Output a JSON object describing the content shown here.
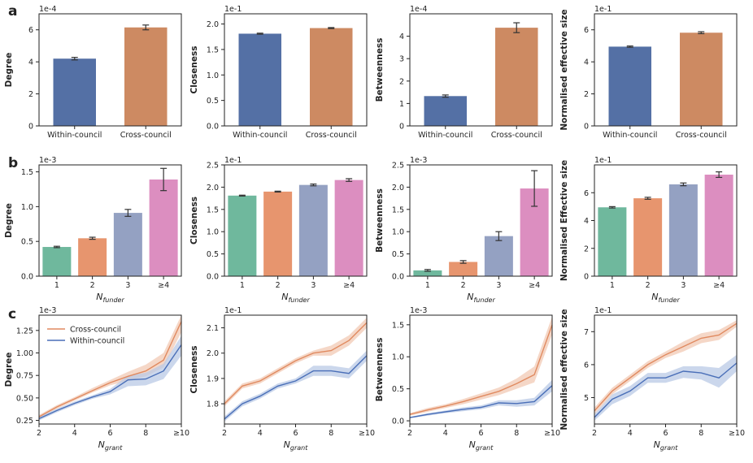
{
  "colors": {
    "within": "#5470a5",
    "cross": "#cd8a62",
    "f1": "#6fb89d",
    "f2": "#e7956e",
    "f3": "#94a1c2",
    "f4": "#dc8ec0",
    "lineCross": "#e08a60",
    "lineWithin": "#4a6fb8",
    "bandCross": "#f1c9b4",
    "bandWithin": "#b9c9e6",
    "err": "#333333"
  },
  "chart_data": [
    {
      "type": "bar",
      "panel": "a",
      "ylabel": "Degree",
      "scale": "1e-4",
      "ylim": [
        0,
        7
      ],
      "yticks": [
        0,
        2,
        4,
        6
      ],
      "categories": [
        "Within-council",
        "Cross-council"
      ],
      "values": [
        4.2,
        6.15
      ],
      "errors": [
        0.08,
        0.15
      ],
      "colorKeys": [
        "within",
        "cross"
      ]
    },
    {
      "type": "bar",
      "ylabel": "Closeness",
      "scale": "1e-1",
      "ylim": [
        0,
        2.2
      ],
      "yticks": [
        0.0,
        0.5,
        1.0,
        1.5,
        2.0
      ],
      "categories": [
        "Within-council",
        "Cross-council"
      ],
      "values": [
        1.81,
        1.92
      ],
      "errors": [
        0.01,
        0.01
      ],
      "colorKeys": [
        "within",
        "cross"
      ]
    },
    {
      "type": "bar",
      "ylabel": "Betweenness",
      "scale": "1e-4",
      "ylim": [
        0,
        5
      ],
      "yticks": [
        0,
        1,
        2,
        3,
        4
      ],
      "categories": [
        "Within-council",
        "Cross-council"
      ],
      "values": [
        1.33,
        4.38
      ],
      "errors": [
        0.05,
        0.22
      ],
      "colorKeys": [
        "within",
        "cross"
      ]
    },
    {
      "type": "bar",
      "ylabel": "Normalised effective size",
      "scale": "1e-1",
      "ylim": [
        0,
        7
      ],
      "yticks": [
        0,
        2,
        4,
        6
      ],
      "categories": [
        "Within-council",
        "Cross-council"
      ],
      "values": [
        4.95,
        5.82
      ],
      "errors": [
        0.04,
        0.06
      ],
      "colorKeys": [
        "within",
        "cross"
      ]
    },
    {
      "type": "bar",
      "panel": "b",
      "ylabel": "Degree",
      "scale": "1e-3",
      "xlabel": "N",
      "xsub": "funder",
      "ylim": [
        0,
        1.6
      ],
      "yticks": [
        0.0,
        0.5,
        1.0,
        1.5
      ],
      "categories": [
        "1",
        "2",
        "3",
        "≥4"
      ],
      "values": [
        0.42,
        0.545,
        0.91,
        1.39
      ],
      "errors": [
        0.01,
        0.015,
        0.05,
        0.16
      ],
      "colorKeys": [
        "f1",
        "f2",
        "f3",
        "f4"
      ]
    },
    {
      "type": "bar",
      "ylabel": "Closeness",
      "scale": "1e-1",
      "xlabel": "N",
      "xsub": "funder",
      "ylim": [
        0,
        2.5
      ],
      "yticks": [
        0.0,
        0.5,
        1.0,
        1.5,
        2.0,
        2.5
      ],
      "categories": [
        "1",
        "2",
        "3",
        "≥4"
      ],
      "values": [
        1.81,
        1.9,
        2.05,
        2.16
      ],
      "errors": [
        0.01,
        0.01,
        0.02,
        0.03
      ],
      "colorKeys": [
        "f1",
        "f2",
        "f3",
        "f4"
      ]
    },
    {
      "type": "bar",
      "ylabel": "Betweenness",
      "scale": "1e-3",
      "xlabel": "N",
      "xsub": "funder",
      "ylim": [
        0,
        2.5
      ],
      "yticks": [
        0.0,
        0.5,
        1.0,
        1.5,
        2.0,
        2.5
      ],
      "categories": [
        "1",
        "2",
        "3",
        "≥4"
      ],
      "values": [
        0.13,
        0.32,
        0.9,
        1.97
      ],
      "errors": [
        0.02,
        0.03,
        0.1,
        0.4
      ],
      "colorKeys": [
        "f1",
        "f2",
        "f3",
        "f4"
      ]
    },
    {
      "type": "bar",
      "ylabel": "Normalised Effective size",
      "scale": "1e-1",
      "xlabel": "N",
      "xsub": "funder",
      "ylim": [
        0,
        8
      ],
      "yticks": [
        0,
        2,
        4,
        6
      ],
      "categories": [
        "1",
        "2",
        "3",
        "≥4"
      ],
      "values": [
        4.95,
        5.6,
        6.6,
        7.3
      ],
      "errors": [
        0.05,
        0.07,
        0.1,
        0.2
      ],
      "colorKeys": [
        "f1",
        "f2",
        "f3",
        "f4"
      ]
    },
    {
      "type": "line",
      "panel": "c",
      "ylabel": "Degree",
      "scale": "1e-3",
      "xlabel": "N",
      "xsub": "grant",
      "xlim": [
        2,
        10
      ],
      "xticks": [
        2,
        4,
        6,
        8,
        10
      ],
      "xticklabels": [
        "2",
        "4",
        "6",
        "8",
        "≥10"
      ],
      "ylim": [
        0.21,
        1.42
      ],
      "yticks": [
        0.25,
        0.5,
        0.75,
        1.0,
        1.25
      ],
      "legend": [
        "Cross-council",
        "Within-council"
      ],
      "x": [
        2,
        3,
        4,
        5,
        6,
        7,
        8,
        9,
        10
      ],
      "series": [
        {
          "name": "Cross-council",
          "colorKey": "lineCross",
          "bandKey": "bandCross",
          "values": [
            0.29,
            0.4,
            0.49,
            0.58,
            0.67,
            0.74,
            0.8,
            0.92,
            1.35
          ],
          "lower": [
            0.27,
            0.38,
            0.47,
            0.56,
            0.64,
            0.69,
            0.74,
            0.84,
            1.23
          ],
          "upper": [
            0.31,
            0.42,
            0.51,
            0.61,
            0.7,
            0.79,
            0.87,
            1.0,
            1.42
          ]
        },
        {
          "name": "Within-council",
          "colorKey": "lineWithin",
          "bandKey": "bandWithin",
          "values": [
            0.27,
            0.36,
            0.44,
            0.51,
            0.57,
            0.7,
            0.71,
            0.8,
            1.09
          ],
          "lower": [
            0.25,
            0.34,
            0.42,
            0.49,
            0.54,
            0.63,
            0.64,
            0.71,
            0.97
          ],
          "upper": [
            0.29,
            0.38,
            0.46,
            0.53,
            0.6,
            0.75,
            0.78,
            0.88,
            1.19
          ]
        }
      ]
    },
    {
      "type": "line",
      "ylabel": "Closeness",
      "scale": "1e-1",
      "xlabel": "N",
      "xsub": "grant",
      "xlim": [
        2,
        10
      ],
      "xticks": [
        2,
        4,
        6,
        8,
        10
      ],
      "xticklabels": [
        "2",
        "4",
        "6",
        "8",
        "≥10"
      ],
      "ylim": [
        1.72,
        2.15
      ],
      "yticks": [
        1.8,
        1.9,
        2.0,
        2.1
      ],
      "x": [
        2,
        3,
        4,
        5,
        6,
        7,
        8,
        9,
        10
      ],
      "series": [
        {
          "name": "Cross-council",
          "colorKey": "lineCross",
          "bandKey": "bandCross",
          "values": [
            1.8,
            1.87,
            1.89,
            1.93,
            1.97,
            2.0,
            2.01,
            2.05,
            2.12
          ],
          "lower": [
            1.79,
            1.86,
            1.88,
            1.92,
            1.96,
            1.99,
            1.99,
            2.03,
            2.1
          ],
          "upper": [
            1.81,
            1.88,
            1.9,
            1.94,
            1.98,
            2.01,
            2.03,
            2.07,
            2.14
          ]
        },
        {
          "name": "Within-council",
          "colorKey": "lineWithin",
          "bandKey": "bandWithin",
          "values": [
            1.74,
            1.8,
            1.83,
            1.87,
            1.89,
            1.93,
            1.93,
            1.92,
            1.99
          ],
          "lower": [
            1.73,
            1.79,
            1.82,
            1.86,
            1.88,
            1.91,
            1.91,
            1.9,
            1.97
          ],
          "upper": [
            1.75,
            1.81,
            1.84,
            1.88,
            1.9,
            1.95,
            1.95,
            1.94,
            2.01
          ]
        }
      ]
    },
    {
      "type": "line",
      "ylabel": "Betweenness",
      "scale": "1e-3",
      "xlabel": "N",
      "xsub": "grant",
      "xlim": [
        2,
        10
      ],
      "xticks": [
        2,
        4,
        6,
        8,
        10
      ],
      "xticklabels": [
        "2",
        "4",
        "6",
        "8",
        "≥10"
      ],
      "ylim": [
        -0.05,
        1.65
      ],
      "yticks": [
        0.0,
        0.5,
        1.0,
        1.5
      ],
      "x": [
        2,
        3,
        4,
        5,
        6,
        7,
        8,
        9,
        10
      ],
      "series": [
        {
          "name": "Cross-council",
          "colorKey": "lineCross",
          "bandKey": "bandCross",
          "values": [
            0.1,
            0.17,
            0.23,
            0.3,
            0.38,
            0.46,
            0.58,
            0.72,
            1.5
          ],
          "lower": [
            0.08,
            0.14,
            0.2,
            0.26,
            0.33,
            0.4,
            0.5,
            0.6,
            1.35
          ],
          "upper": [
            0.12,
            0.2,
            0.26,
            0.34,
            0.43,
            0.52,
            0.66,
            0.85,
            1.63
          ]
        },
        {
          "name": "Within-council",
          "colorKey": "lineWithin",
          "bandKey": "bandWithin",
          "values": [
            0.05,
            0.1,
            0.14,
            0.18,
            0.21,
            0.28,
            0.27,
            0.3,
            0.55
          ],
          "lower": [
            0.04,
            0.08,
            0.12,
            0.15,
            0.18,
            0.24,
            0.22,
            0.24,
            0.46
          ],
          "upper": [
            0.06,
            0.12,
            0.16,
            0.21,
            0.24,
            0.32,
            0.32,
            0.36,
            0.64
          ]
        }
      ]
    },
    {
      "type": "line",
      "ylabel": "Normalised effective size",
      "scale": "1e-1",
      "xlabel": "N",
      "xsub": "grant",
      "xlim": [
        2,
        10
      ],
      "xticks": [
        2,
        4,
        6,
        8,
        10
      ],
      "xticklabels": [
        "2",
        "4",
        "6",
        "8",
        "≥10"
      ],
      "ylim": [
        4.2,
        7.5
      ],
      "yticks": [
        5,
        6,
        7
      ],
      "x": [
        2,
        3,
        4,
        5,
        6,
        7,
        8,
        9,
        10
      ],
      "series": [
        {
          "name": "Cross-council",
          "colorKey": "lineCross",
          "bandKey": "bandCross",
          "values": [
            4.6,
            5.2,
            5.6,
            6.0,
            6.3,
            6.55,
            6.8,
            6.9,
            7.25
          ],
          "lower": [
            4.5,
            5.1,
            5.5,
            5.9,
            6.2,
            6.4,
            6.65,
            6.75,
            7.15
          ],
          "upper": [
            4.7,
            5.3,
            5.7,
            6.1,
            6.4,
            6.7,
            6.95,
            7.05,
            7.35
          ]
        },
        {
          "name": "Within-council",
          "colorKey": "lineWithin",
          "bandKey": "bandWithin",
          "values": [
            4.4,
            4.95,
            5.2,
            5.6,
            5.6,
            5.8,
            5.75,
            5.6,
            6.05
          ],
          "lower": [
            4.3,
            4.8,
            5.05,
            5.45,
            5.45,
            5.6,
            5.55,
            5.3,
            5.8
          ],
          "upper": [
            4.5,
            5.1,
            5.35,
            5.75,
            5.75,
            5.95,
            5.95,
            5.9,
            6.3
          ]
        }
      ]
    }
  ]
}
